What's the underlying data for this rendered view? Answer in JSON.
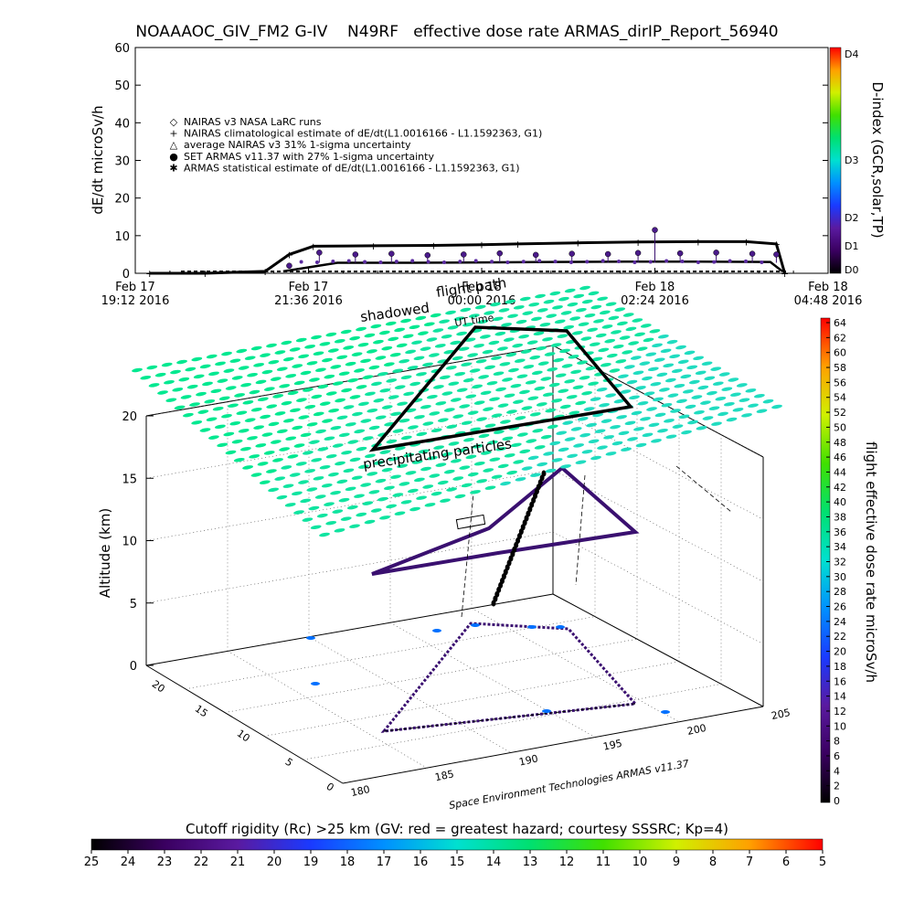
{
  "title": "NOAAAOC_GIV_FM2 G-IV    N49RF   effective dose rate ARMAS_dirIP_Report_56940",
  "top_panel": {
    "ylabel": "dE/dt microSv/h",
    "y_ticks": [
      "0",
      "10",
      "20",
      "30",
      "40",
      "50",
      "60"
    ],
    "x_ticks": [
      {
        "date": "Feb 17",
        "time": "19:12 2016"
      },
      {
        "date": "Feb 17",
        "time": "21:36 2016"
      },
      {
        "date": "Feb 18",
        "time": "00:00 2016"
      },
      {
        "date": "Feb 18",
        "time": "02:24 2016"
      },
      {
        "date": "Feb 18",
        "time": "04:48 2016"
      }
    ],
    "legend": [
      {
        "symbol": "◇",
        "text": "NAIRAS v3 NASA LaRC runs"
      },
      {
        "symbol": "+",
        "text": "NAIRAS climatological estimate of dE/dt(L1.0016166 - L1.1592363, G1)"
      },
      {
        "symbol": "△",
        "text": "average NAIRAS v3 31% 1-sigma uncertainty"
      },
      {
        "symbol": "●",
        "text": "SET ARMAS v11.37 with 27% 1-sigma uncertainty"
      },
      {
        "symbol": "✱",
        "text": "ARMAS statistical estimate of dE/dt(L1.0016166 - L1.1592363, G1)"
      }
    ],
    "dindex_label": "D-index (GCR,solar,TP)",
    "dindex_ticks": [
      "D0",
      "D1",
      "D2",
      "D3",
      "D4"
    ]
  },
  "bottom_panel": {
    "overlay_labels": {
      "flight_path": "flight path",
      "shadowed": "shadowed",
      "ut_time": "UT time",
      "precipitating": "precipitating particles"
    },
    "zlabel": "Altitude (km)",
    "z_ticks": [
      "0",
      "5",
      "10",
      "15",
      "20"
    ],
    "lat_ticks": [
      "0",
      "5",
      "10",
      "15",
      "20"
    ],
    "lon_ticks": [
      "180",
      "185",
      "190",
      "195",
      "200",
      "205"
    ],
    "credit": "Space Environment Technologies ARMAS v11.37",
    "colorbar_label": "flight effective dose rate microSv/h",
    "colorbar_ticks": [
      "0",
      "2",
      "4",
      "6",
      "8",
      "10",
      "12",
      "14",
      "16",
      "18",
      "20",
      "22",
      "24",
      "26",
      "28",
      "30",
      "32",
      "34",
      "36",
      "38",
      "40",
      "42",
      "44",
      "46",
      "48",
      "50",
      "52",
      "54",
      "56",
      "58",
      "60",
      "62",
      "64"
    ]
  },
  "cutoff": {
    "title": "Cutoff rigidity (Rc) >25 km (GV: red = greatest hazard; courtesy SSSRC; Kp=4)",
    "ticks": [
      "25",
      "24",
      "23",
      "22",
      "21",
      "20",
      "19",
      "18",
      "17",
      "16",
      "15",
      "14",
      "13",
      "12",
      "11",
      "10",
      "9",
      "8",
      "7",
      "6",
      "5"
    ]
  },
  "chart_data": [
    {
      "type": "line",
      "title": "NOAAAOC_GIV_FM2 G-IV    N49RF   effective dose rate ARMAS_dirIP_Report_56940",
      "xlabel": "",
      "ylabel": "dE/dt microSv/h",
      "ylim": [
        0,
        60
      ],
      "xlim": [
        "Feb 17 19:12 2016",
        "Feb 18 04:48 2016"
      ],
      "x_hours_from_start_axis_ticks": [
        "Feb 17 19:12 2016",
        "Feb 17 21:36 2016",
        "Feb 18 00:00 2016",
        "Feb 18 02:24 2016",
        "Feb 18 04:48 2016"
      ],
      "series": [
        {
          "name": "NAIRAS climatological estimate of dE/dt(L1.0016166 - L1.1592363, G1)",
          "x": [
            "Feb 17 19:24",
            "Feb 17 20:10",
            "Feb 17 21:00",
            "Feb 17 21:20",
            "Feb 17 21:40",
            "Feb 17 22:30",
            "Feb 17 23:20",
            "Feb 18 00:00",
            "Feb 18 00:30",
            "Feb 18 01:20",
            "Feb 18 02:10",
            "Feb 18 03:00",
            "Feb 18 03:40",
            "Feb 18 04:05",
            "Feb 18 04:12"
          ],
          "y": [
            0,
            0,
            0.5,
            5,
            7.2,
            7.3,
            7.4,
            7.6,
            7.8,
            8.1,
            8.3,
            8.4,
            8.4,
            7.8,
            0
          ]
        },
        {
          "name": "SET ARMAS v11.37 with 27% 1-sigma uncertainty",
          "x": [
            "Feb 17 21:20",
            "Feb 17 21:45",
            "Feb 17 22:15",
            "Feb 17 22:45",
            "Feb 17 23:15",
            "Feb 17 23:45",
            "Feb 18 00:15",
            "Feb 18 00:45",
            "Feb 18 01:15",
            "Feb 18 01:45",
            "Feb 18 02:10",
            "Feb 18 02:24",
            "Feb 18 02:45",
            "Feb 18 03:15",
            "Feb 18 03:45",
            "Feb 18 04:05"
          ],
          "y": [
            2,
            5.5,
            5,
            5.2,
            4.8,
            5,
            5.3,
            4.9,
            5.2,
            5.1,
            5.4,
            11.5,
            5.3,
            5.5,
            5.2,
            5
          ]
        },
        {
          "name": "ARMAS statistical estimate of dE/dt(L1.0016166 - L1.1592363, G1)",
          "x": [
            "Feb 17 21:15",
            "Feb 17 22:00",
            "Feb 17 23:00",
            "Feb 18 00:00",
            "Feb 18 01:00",
            "Feb 18 02:00",
            "Feb 18 03:00",
            "Feb 18 04:00",
            "Feb 18 04:10"
          ],
          "y": [
            0.5,
            2.8,
            2.8,
            2.9,
            3.0,
            3.1,
            3.1,
            3.0,
            0.5
          ]
        }
      ]
    },
    {
      "type": "scatter",
      "zlabel": "Altitude (km)",
      "zlim": [
        0,
        20
      ],
      "lon_range": [
        180,
        205
      ],
      "lat_range": [
        0,
        25
      ],
      "colorbar_range": [
        0,
        64
      ],
      "cutoff_range_GV": [
        25,
        5
      ]
    }
  ]
}
